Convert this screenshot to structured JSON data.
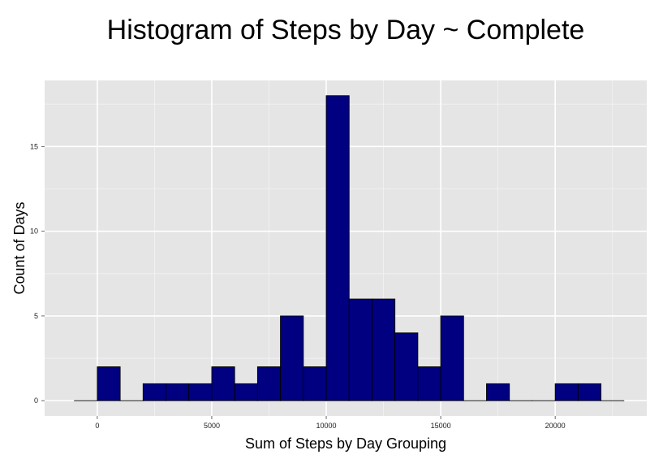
{
  "chart_data": {
    "type": "bar",
    "title": "Histogram of Steps by Day ~ Complete",
    "xlabel": "Sum of Steps by Day Grouping",
    "ylabel": "Count of Days",
    "bin_width": 1000,
    "bins": [
      {
        "x0": -1000,
        "x1": 0,
        "count": 0
      },
      {
        "x0": 0,
        "x1": 1000,
        "count": 2
      },
      {
        "x0": 1000,
        "x1": 2000,
        "count": 0
      },
      {
        "x0": 2000,
        "x1": 3000,
        "count": 1
      },
      {
        "x0": 3000,
        "x1": 4000,
        "count": 1
      },
      {
        "x0": 4000,
        "x1": 5000,
        "count": 1
      },
      {
        "x0": 5000,
        "x1": 6000,
        "count": 2
      },
      {
        "x0": 6000,
        "x1": 7000,
        "count": 1
      },
      {
        "x0": 7000,
        "x1": 8000,
        "count": 2
      },
      {
        "x0": 8000,
        "x1": 9000,
        "count": 5
      },
      {
        "x0": 9000,
        "x1": 10000,
        "count": 2
      },
      {
        "x0": 10000,
        "x1": 11000,
        "count": 18
      },
      {
        "x0": 11000,
        "x1": 12000,
        "count": 6
      },
      {
        "x0": 12000,
        "x1": 13000,
        "count": 6
      },
      {
        "x0": 13000,
        "x1": 14000,
        "count": 4
      },
      {
        "x0": 14000,
        "x1": 15000,
        "count": 2
      },
      {
        "x0": 15000,
        "x1": 16000,
        "count": 5
      },
      {
        "x0": 16000,
        "x1": 17000,
        "count": 0
      },
      {
        "x0": 17000,
        "x1": 18000,
        "count": 1
      },
      {
        "x0": 18000,
        "x1": 19000,
        "count": 0
      },
      {
        "x0": 19000,
        "x1": 20000,
        "count": 0
      },
      {
        "x0": 20000,
        "x1": 21000,
        "count": 1
      },
      {
        "x0": 21000,
        "x1": 22000,
        "count": 1
      },
      {
        "x0": 22000,
        "x1": 23000,
        "count": 0
      }
    ],
    "xlim": [
      -2300,
      24000
    ],
    "ylim": [
      -0.9,
      18.9
    ],
    "x_ticks": [
      0,
      5000,
      10000,
      15000,
      20000
    ],
    "x_tick_labels": [
      "0",
      "5000",
      "10000",
      "15000",
      "20000"
    ],
    "y_ticks": [
      0,
      5,
      10,
      15
    ],
    "y_tick_labels": [
      "0",
      "5",
      "10",
      "15"
    ],
    "grid": true,
    "colors": {
      "bar_fill": "#000080",
      "bar_stroke": "#000000",
      "panel_bg": "#e5e5e5",
      "grid_major": "#ffffff",
      "grid_minor": "#f2f2f2"
    }
  }
}
